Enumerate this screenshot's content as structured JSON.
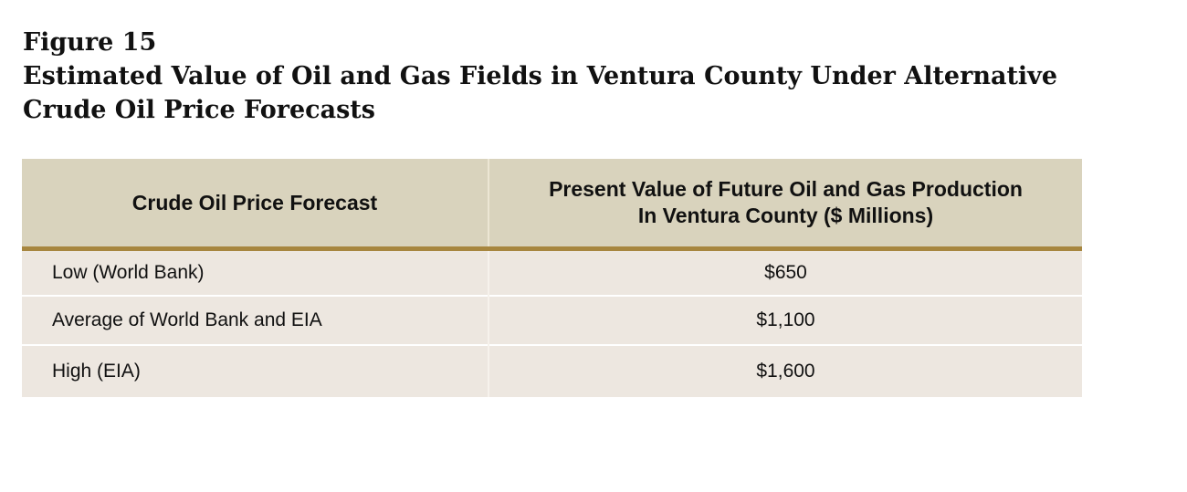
{
  "figure": {
    "number": "Figure 15",
    "title_line1": "Estimated Value of Oil and Gas Fields in Ventura County Under Alternative",
    "title_line2": "Crude Oil Price Forecasts"
  },
  "table": {
    "header": {
      "col1": "Crude Oil Price Forecast",
      "col2_line1": "Present Value of Future Oil and Gas Production",
      "col2_line2": "In Ventura County ($ Millions)"
    },
    "rows": [
      {
        "forecast": "Low (World Bank)",
        "value": "$650"
      },
      {
        "forecast": "Average of World Bank and EIA",
        "value": "$1,100"
      },
      {
        "forecast": "High (EIA)",
        "value": "$1,600"
      }
    ]
  },
  "colors": {
    "header_bg": "#d9d3bd",
    "header_rule": "#a7863f",
    "row_bg": "#ede7e0"
  }
}
